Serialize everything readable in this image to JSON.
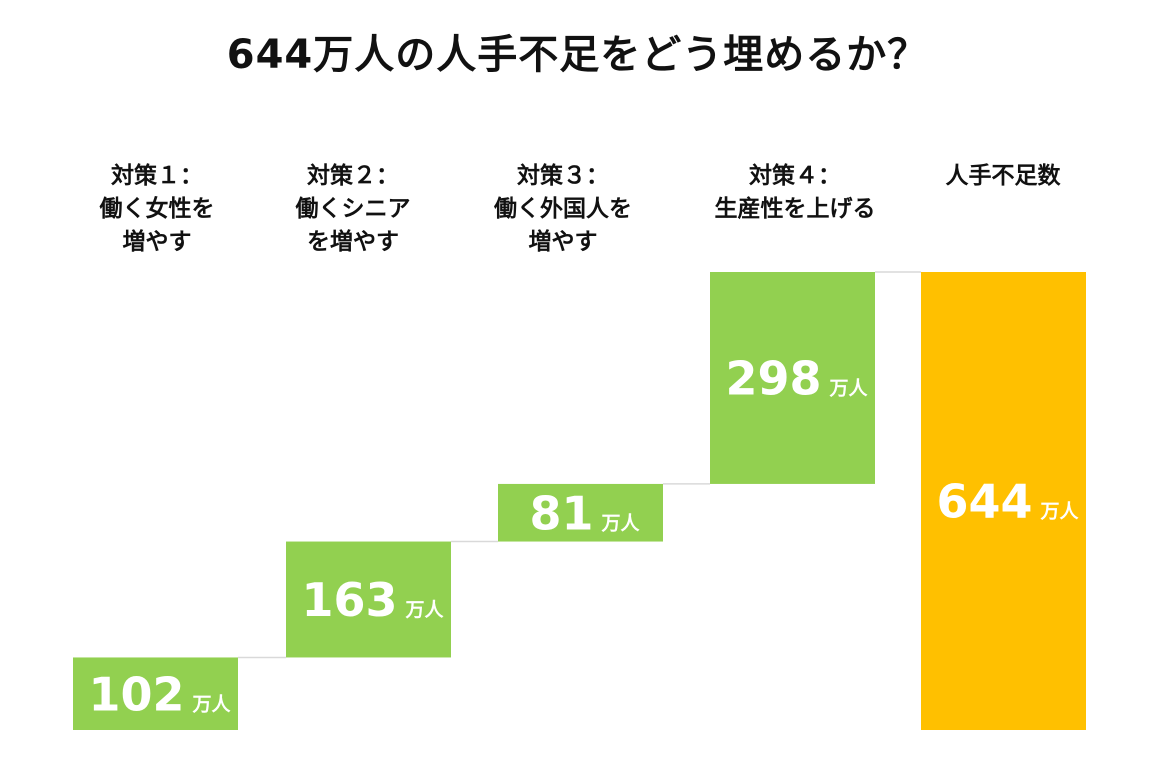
{
  "chart_data": {
    "type": "waterfall",
    "title": "644万人の人手不足をどう埋めるか？",
    "unit": "万人",
    "categories": [
      "対策１：\n働く女性を\n増やす",
      "対策２：\n働くシニア\nを増やす",
      "対策３：\n働く外国人を\n増やす",
      "対策４：\n生産性を上げる",
      "人手不足数"
    ],
    "values": [
      102,
      163,
      81,
      298,
      644
    ],
    "value_labels": [
      "102",
      "163",
      "81",
      "298",
      "644"
    ],
    "total_index": 4,
    "colors": {
      "step": "#92d050",
      "total": "#ffc000",
      "connector": "#d9d9d9"
    }
  }
}
